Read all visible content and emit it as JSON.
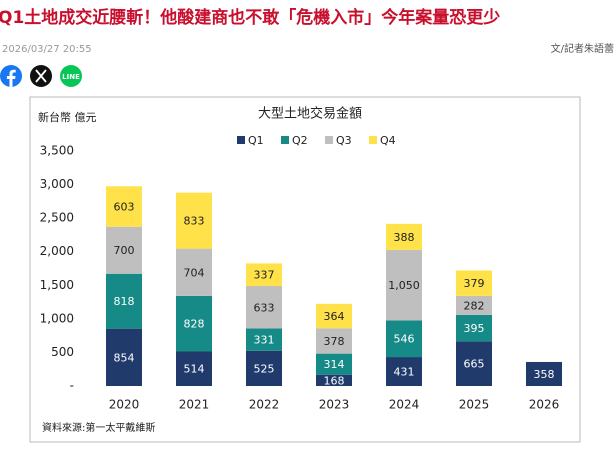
{
  "header": {
    "title": "Q1土地成交近腰斬！他酸建商也不敢「危機入市」今年案量恐更少",
    "date": "2026/03/27 20:55",
    "byline": "文/記者朱語蕾",
    "share_label": "LINE"
  },
  "chart_data": {
    "type": "stacked_bar",
    "title": "大型土地交易金額",
    "unit_label": "新台幣 億元",
    "source": "資料來源:第一太平戴維斯",
    "categories": [
      "2020",
      "2021",
      "2022",
      "2023",
      "2024",
      "2025",
      "2026"
    ],
    "series": [
      {
        "name": "Q1",
        "color": "#1f3a6b",
        "values": [
          854,
          514,
          525,
          168,
          431,
          665,
          358
        ]
      },
      {
        "name": "Q2",
        "color": "#168a86",
        "values": [
          818,
          828,
          331,
          314,
          546,
          395,
          null
        ]
      },
      {
        "name": "Q3",
        "color": "#bfbfbf",
        "values": [
          700,
          704,
          633,
          378,
          1050,
          282,
          null
        ],
        "value_labels": [
          "700",
          "704",
          "633",
          "378",
          "1,050",
          "282",
          null
        ]
      },
      {
        "name": "Q4",
        "color": "#ffe24a",
        "values": [
          603,
          833,
          337,
          364,
          388,
          379,
          null
        ]
      }
    ],
    "ylim": [
      0,
      3500
    ],
    "yticks": [
      {
        "value": 0,
        "label": "-"
      },
      500,
      {
        "value": 1000,
        "label": "1,000"
      },
      {
        "value": 1500,
        "label": "1,500"
      },
      {
        "value": 2000,
        "label": "2,000"
      },
      {
        "value": 2500,
        "label": "2,500"
      },
      {
        "value": 3000,
        "label": "3,000"
      },
      {
        "value": 3500,
        "label": "3,500"
      }
    ],
    "legend": "top",
    "grid": false
  }
}
